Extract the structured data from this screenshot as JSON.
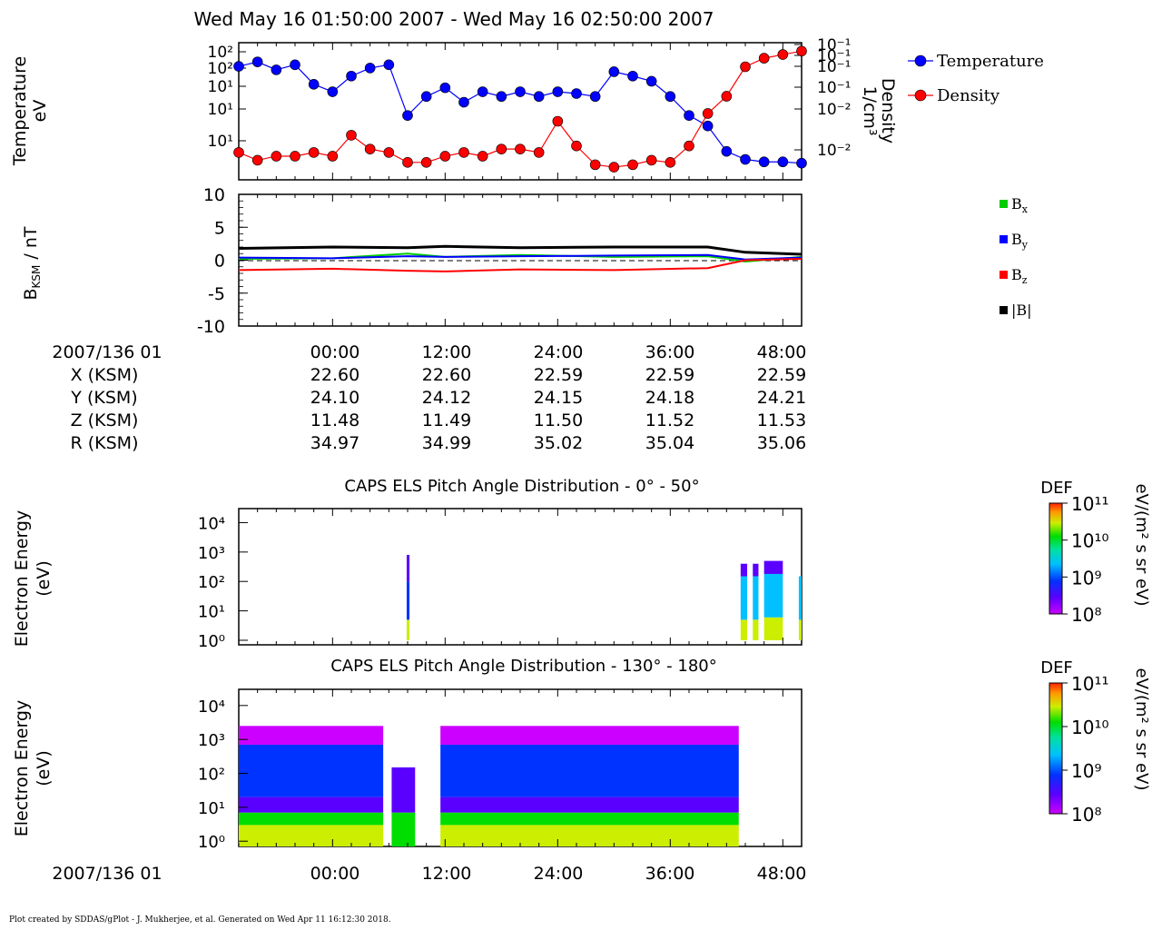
{
  "header": {
    "title": "Wed May 16 01:50:00 2007 - Wed May 16 02:50:00 2007"
  },
  "panel1": {
    "ylabel_line1": "Temperature",
    "ylabel_line2": "eV",
    "yticks_left": [
      "10²",
      "10²",
      "10¹",
      "10¹",
      "10¹"
    ],
    "ylabel_right_line1": "Density",
    "ylabel_right_line2": "1/cm³",
    "yticks_right": [
      "10⁻¹",
      "10⁻¹",
      "10⁻¹",
      "10⁻¹",
      "10⁻²",
      "10⁻²"
    ],
    "legend": [
      {
        "name": "Temperature",
        "color": "#0000ff"
      },
      {
        "name": "Density",
        "color": "#ff0000"
      }
    ]
  },
  "panel2": {
    "ylabel": "B",
    "ylabel_sub": "KSM",
    "ylabel_unit": " / nT",
    "yticks": [
      "10",
      "5",
      "0",
      "-5",
      "-10"
    ],
    "legend": [
      {
        "key": "bx",
        "base": "B",
        "sub": "x",
        "color": "#00cc00"
      },
      {
        "key": "by",
        "base": "B",
        "sub": "y",
        "color": "#0000ff"
      },
      {
        "key": "bz",
        "base": "B",
        "sub": "z",
        "color": "#ff0000"
      },
      {
        "key": "bmag",
        "base": "|B|",
        "sub": "",
        "color": "#000000"
      }
    ]
  },
  "ephemeris": {
    "rows": [
      {
        "label": "2007/136 01",
        "values": [
          "00:00",
          "12:00",
          "24:00",
          "36:00",
          "48:00"
        ]
      },
      {
        "label": "X (KSM)",
        "values": [
          "22.60",
          "22.60",
          "22.59",
          "22.59",
          "22.59"
        ]
      },
      {
        "label": "Y (KSM)",
        "values": [
          "24.10",
          "24.12",
          "24.15",
          "24.18",
          "24.21"
        ]
      },
      {
        "label": "Z (KSM)",
        "values": [
          "11.48",
          "11.49",
          "11.50",
          "11.52",
          "11.53"
        ]
      },
      {
        "label": "R (KSM)",
        "values": [
          "34.97",
          "34.99",
          "35.02",
          "35.04",
          "35.06"
        ]
      }
    ]
  },
  "spectrogram1": {
    "title": "CAPS ELS Pitch Angle Distribution - 0° - 50°",
    "ylabel_line1": "Electron Energy",
    "ylabel_line2": "(eV)",
    "yticks": [
      "10⁴",
      "10³",
      "10²",
      "10¹",
      "10⁰"
    ]
  },
  "spectrogram2": {
    "title": "CAPS ELS Pitch Angle Distribution - 130° - 180°",
    "ylabel_line1": "Electron Energy",
    "ylabel_line2": "(eV)",
    "yticks": [
      "10⁴",
      "10³",
      "10²",
      "10¹",
      "10⁰"
    ]
  },
  "colorbar": {
    "label": "DEF",
    "unit": "eV/(m² s sr eV)",
    "ticks": [
      "10¹¹",
      "10¹⁰",
      "10⁹",
      "10⁸"
    ]
  },
  "bottom_axis": {
    "label": "2007/136 01",
    "ticks": [
      "00:00",
      "12:00",
      "24:00",
      "36:00",
      "48:00"
    ]
  },
  "footer": {
    "text": "Plot created by SDDAS/gPlot - J. Mukherjee, et al.  Generated on Wed Apr 11 16:12:30 2018."
  },
  "chart_data": [
    {
      "type": "line",
      "title": "",
      "xlabel": "",
      "ylabel": "Temperature eV",
      "ylabel_right": "Density 1/cm³",
      "x_unit": "minutes after 2007/136 01:50",
      "xlim": [
        -10,
        50
      ],
      "series": [
        {
          "name": "Temperature",
          "color": "#0000ff",
          "axis": "left",
          "x": [
            -10,
            -8,
            -6,
            -4,
            -2,
            0,
            2,
            4,
            6,
            8,
            10,
            12,
            14,
            16,
            18,
            20,
            22,
            24,
            26,
            28,
            30,
            32,
            34,
            36,
            38,
            40,
            42,
            44,
            46,
            48,
            50
          ],
          "y": [
            80,
            95,
            70,
            85,
            40,
            30,
            55,
            75,
            85,
            12,
            25,
            35,
            20,
            30,
            25,
            30,
            25,
            30,
            28,
            25,
            65,
            55,
            45,
            25,
            12,
            8,
            3,
            2.2,
            2,
            2,
            1.9
          ]
        },
        {
          "name": "Density",
          "color": "#ff0000",
          "axis": "right",
          "x": [
            -10,
            -8,
            -6,
            -4,
            -2,
            0,
            2,
            4,
            6,
            8,
            10,
            12,
            14,
            16,
            18,
            20,
            22,
            24,
            26,
            28,
            30,
            32,
            34,
            36,
            38,
            40,
            42,
            44,
            46,
            48,
            50
          ],
          "y": [
            0.012,
            0.01,
            0.011,
            0.011,
            0.012,
            0.011,
            0.018,
            0.013,
            0.012,
            0.0095,
            0.0095,
            0.011,
            0.012,
            0.011,
            0.013,
            0.013,
            0.012,
            0.025,
            0.014,
            0.009,
            0.0085,
            0.009,
            0.01,
            0.0095,
            0.014,
            0.03,
            0.045,
            0.09,
            0.11,
            0.12,
            0.13
          ]
        }
      ]
    },
    {
      "type": "line",
      "title": "",
      "xlabel": "",
      "ylabel": "B KSM / nT",
      "x_unit": "minutes after 2007/136 01:50",
      "xlim": [
        -10,
        50
      ],
      "ylim": [
        -10,
        10
      ],
      "series": [
        {
          "name": "Bx",
          "color": "#00cc00",
          "x": [
            -10,
            0,
            8,
            12,
            20,
            30,
            40,
            44,
            50
          ],
          "y": [
            0.2,
            0.3,
            1.0,
            0.5,
            0.8,
            0.5,
            0.6,
            -0.2,
            0.5
          ]
        },
        {
          "name": "By",
          "color": "#0000ff",
          "x": [
            -10,
            0,
            8,
            12,
            20,
            30,
            40,
            44,
            50
          ],
          "y": [
            0.4,
            0.3,
            0.6,
            0.5,
            0.6,
            0.7,
            0.8,
            0.1,
            0.4
          ]
        },
        {
          "name": "Bz",
          "color": "#ff0000",
          "x": [
            -10,
            0,
            8,
            12,
            20,
            30,
            40,
            44,
            50
          ],
          "y": [
            -1.5,
            -1.3,
            -1.6,
            -1.7,
            -1.4,
            -1.5,
            -1.2,
            0.0,
            0.2
          ]
        },
        {
          "name": "|B|",
          "color": "#000000",
          "x": [
            -10,
            0,
            8,
            12,
            20,
            30,
            40,
            44,
            50
          ],
          "y": [
            1.8,
            2.0,
            1.9,
            2.1,
            1.9,
            2.0,
            2.0,
            1.2,
            0.9
          ]
        }
      ]
    },
    {
      "type": "heatmap",
      "title": "CAPS ELS Pitch Angle Distribution - 0° - 50°",
      "xlabel": "",
      "ylabel": "Electron Energy (eV)",
      "x_unit": "minutes after 2007/136 01:50",
      "xlim": [
        -10,
        50
      ],
      "ylim": [
        0.7,
        30000
      ],
      "yscale": "log",
      "zlabel": "DEF eV/(m² s sr eV)",
      "zlim": [
        100000000.0,
        100000000000.0
      ],
      "columns": [
        {
          "x_start": 7.9,
          "x_end": 8.2,
          "levels": [
            {
              "e_low": 1,
              "e_high": 5,
              "z": 30000000000.0
            },
            {
              "e_low": 5,
              "e_high": 100,
              "z": 2000000000.0
            },
            {
              "e_low": 100,
              "e_high": 800,
              "z": 500000000.0
            }
          ]
        },
        {
          "x_start": 43.5,
          "x_end": 44.2,
          "levels": [
            {
              "e_low": 1,
              "e_high": 5,
              "z": 30000000000.0
            },
            {
              "e_low": 5,
              "e_high": 150,
              "z": 3000000000.0
            },
            {
              "e_low": 150,
              "e_high": 400,
              "z": 500000000.0
            }
          ]
        },
        {
          "x_start": 44.8,
          "x_end": 45.4,
          "levels": [
            {
              "e_low": 1,
              "e_high": 5,
              "z": 30000000000.0
            },
            {
              "e_low": 5,
              "e_high": 150,
              "z": 3000000000.0
            },
            {
              "e_low": 150,
              "e_high": 400,
              "z": 500000000.0
            }
          ]
        },
        {
          "x_start": 46.0,
          "x_end": 48.0,
          "levels": [
            {
              "e_low": 1,
              "e_high": 6,
              "z": 30000000000.0
            },
            {
              "e_low": 6,
              "e_high": 180,
              "z": 4000000000.0
            },
            {
              "e_low": 180,
              "e_high": 500,
              "z": 600000000.0
            }
          ]
        },
        {
          "x_start": 49.7,
          "x_end": 50.0,
          "levels": [
            {
              "e_low": 1,
              "e_high": 5,
              "z": 30000000000.0
            },
            {
              "e_low": 5,
              "e_high": 150,
              "z": 3000000000.0
            }
          ]
        }
      ]
    },
    {
      "type": "heatmap",
      "title": "CAPS ELS Pitch Angle Distribution - 130° - 180°",
      "xlabel": "",
      "ylabel": "Electron Energy (eV)",
      "x_unit": "minutes after 2007/136 01:50",
      "xlim": [
        -10,
        50
      ],
      "ylim": [
        0.7,
        30000
      ],
      "yscale": "log",
      "zlabel": "DEF eV/(m² s sr eV)",
      "zlim": [
        100000000.0,
        100000000000.0
      ],
      "columns": [
        {
          "x_start": -10,
          "x_end": 5.4,
          "levels": [
            {
              "e_low": 0.7,
              "e_high": 3,
              "z": 50000000000.0
            },
            {
              "e_low": 3,
              "e_high": 7,
              "z": 15000000000.0
            },
            {
              "e_low": 7,
              "e_high": 20,
              "z": 300000000.0
            },
            {
              "e_low": 20,
              "e_high": 700,
              "z": 2000000000.0
            },
            {
              "e_low": 700,
              "e_high": 2500,
              "z": 200000000.0
            }
          ]
        },
        {
          "x_start": 6.3,
          "x_end": 8.8,
          "levels": [
            {
              "e_low": 0.7,
              "e_high": 7,
              "z": 20000000000.0
            },
            {
              "e_low": 7,
              "e_high": 150,
              "z": 400000000.0
            }
          ]
        },
        {
          "x_start": 11.5,
          "x_end": 43.3,
          "levels": [
            {
              "e_low": 0.7,
              "e_high": 3,
              "z": 50000000000.0
            },
            {
              "e_low": 3,
              "e_high": 7,
              "z": 15000000000.0
            },
            {
              "e_low": 7,
              "e_high": 20,
              "z": 300000000.0
            },
            {
              "e_low": 20,
              "e_high": 700,
              "z": 2000000000.0
            },
            {
              "e_low": 700,
              "e_high": 2500,
              "z": 200000000.0
            }
          ]
        }
      ]
    }
  ]
}
